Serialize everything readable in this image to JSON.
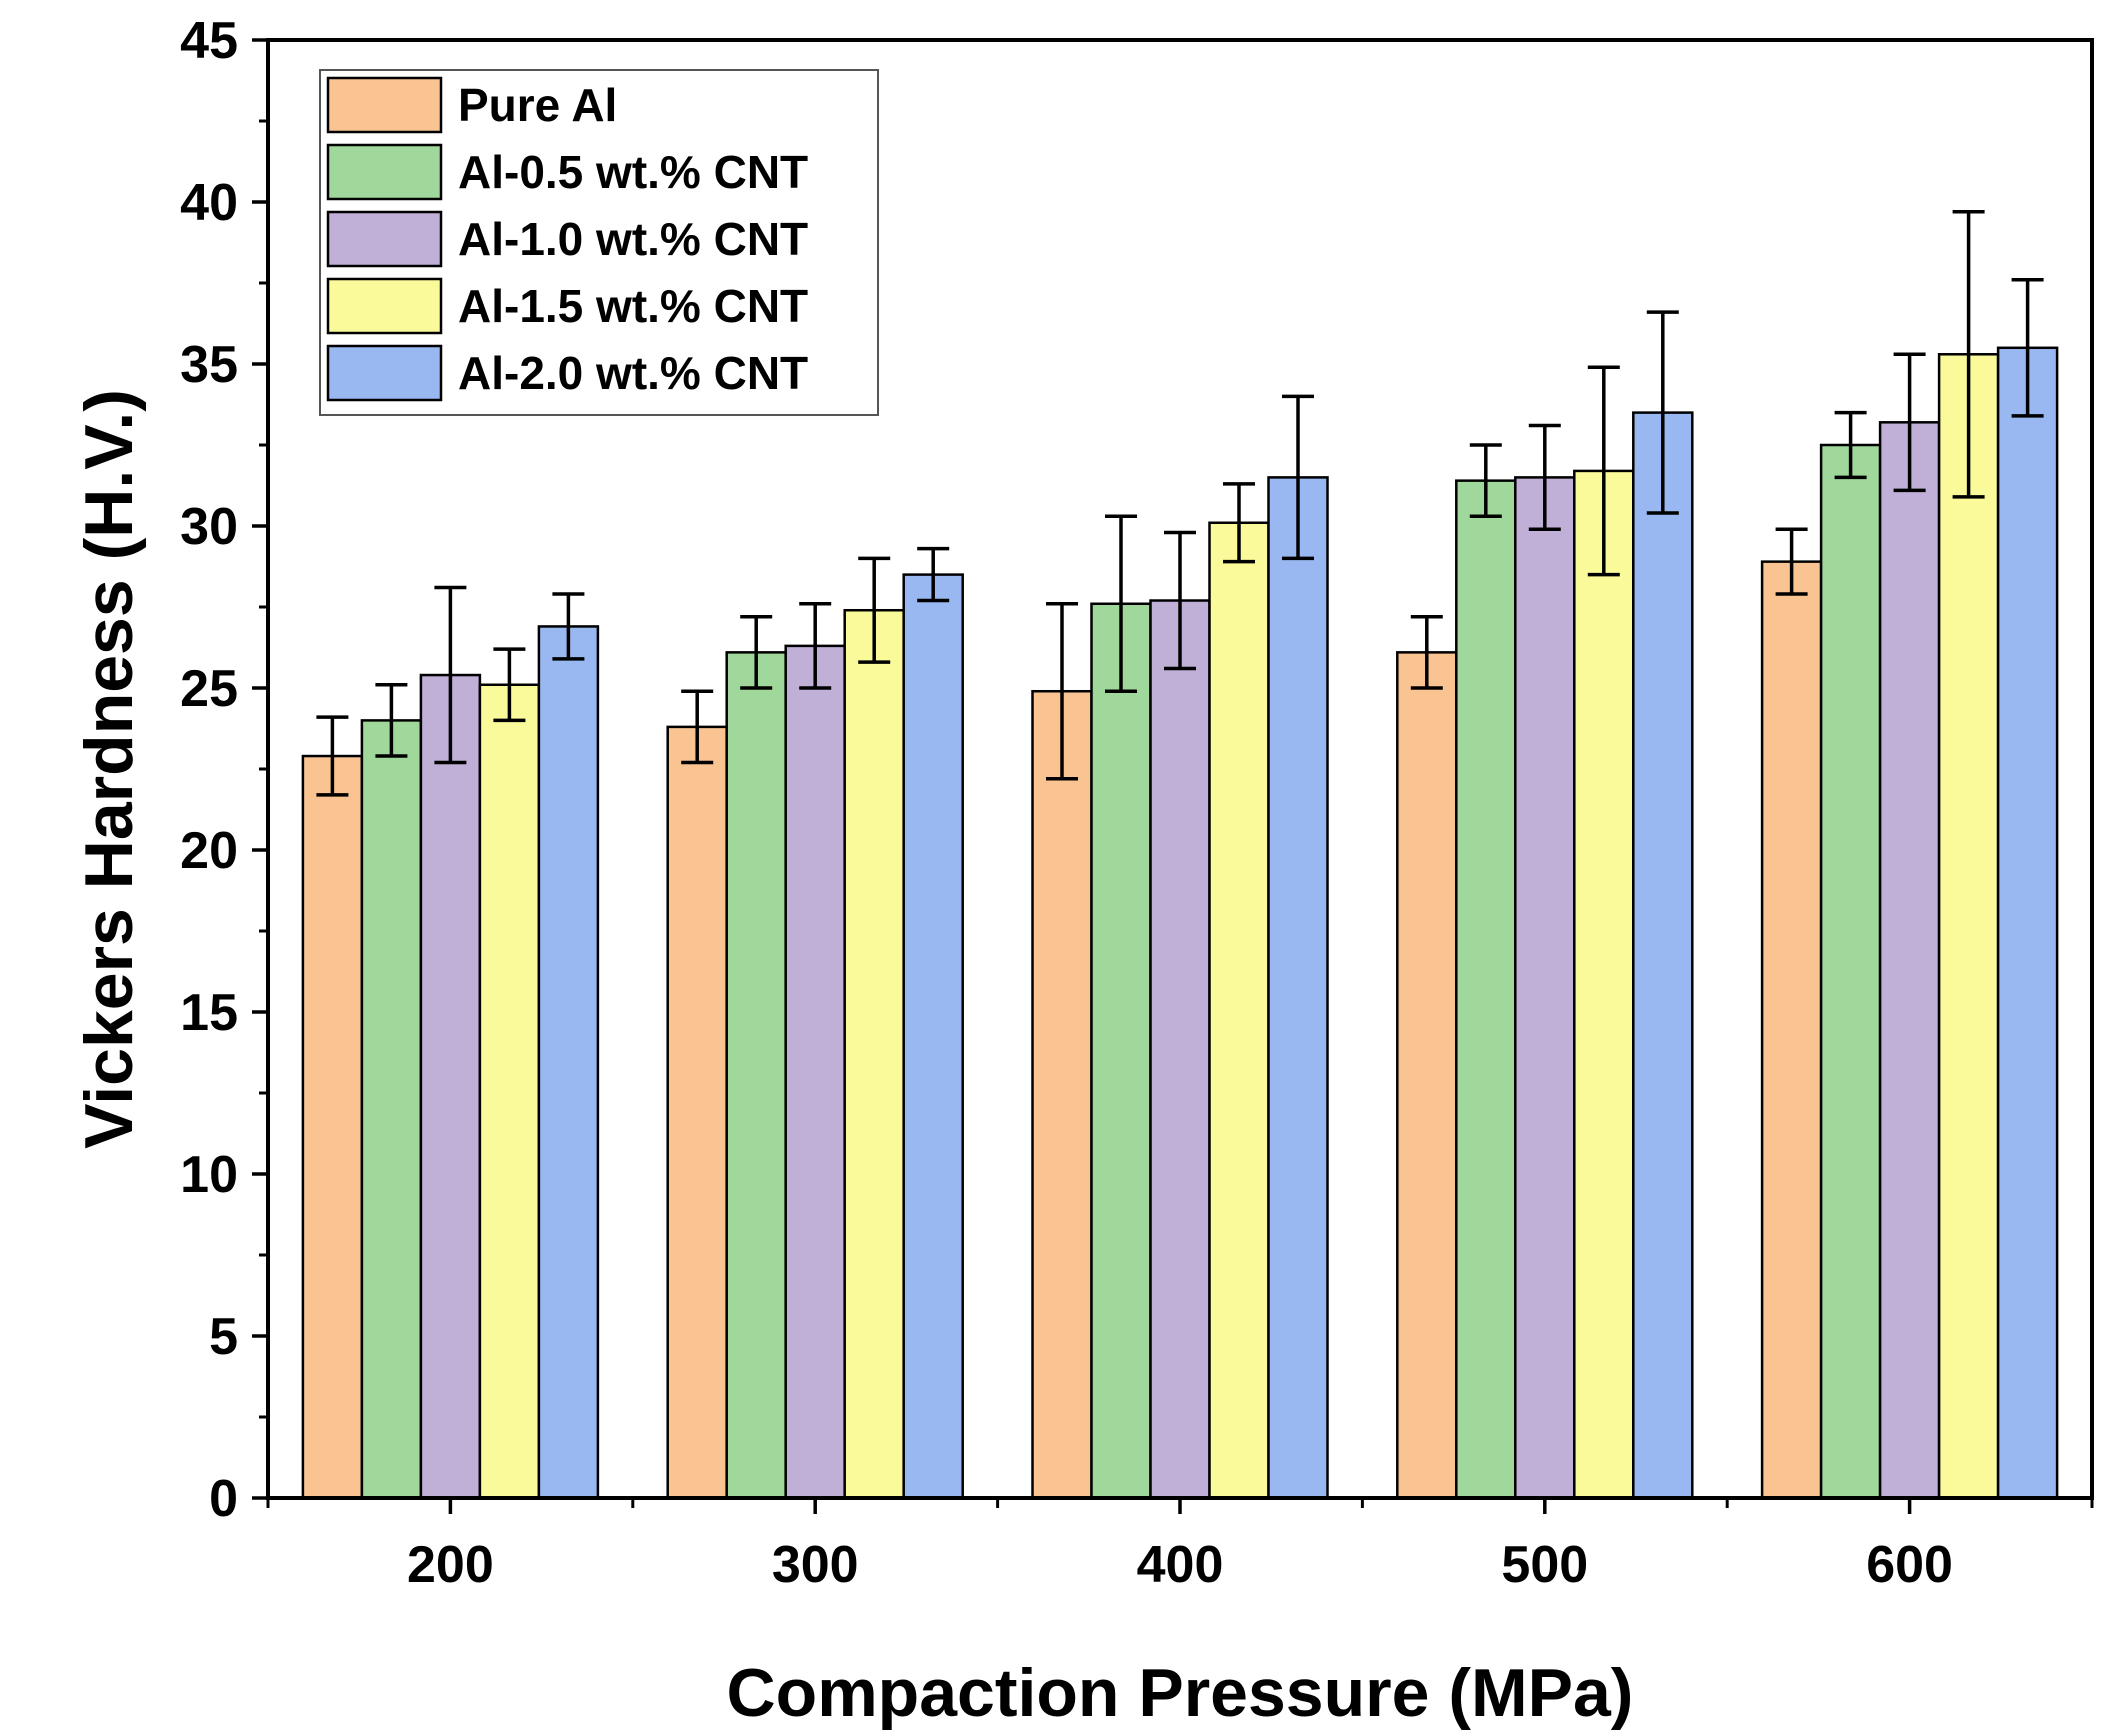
{
  "chart_data": {
    "type": "bar",
    "xlabel": "Compaction Pressure (MPa)",
    "ylabel": "Vickers Hardness (H.V.)",
    "ylim": [
      0,
      45
    ],
    "yticks": [
      "0",
      "5",
      "10",
      "15",
      "20",
      "25",
      "30",
      "35",
      "40",
      "45"
    ],
    "categories": [
      "200",
      "300",
      "400",
      "500",
      "600"
    ],
    "grid": false,
    "legend_position": "top-left",
    "series": [
      {
        "name": "Pure Al",
        "color": "#F9C492",
        "values": [
          22.9,
          23.8,
          24.9,
          26.1,
          28.9
        ],
        "errors": [
          1.2,
          1.1,
          2.7,
          1.1,
          1.0
        ]
      },
      {
        "name": "Al-0.5 wt.% CNT",
        "color": "#9FD89A",
        "values": [
          24.0,
          26.1,
          27.6,
          31.4,
          32.5
        ],
        "errors": [
          1.1,
          1.1,
          2.7,
          1.1,
          1.0
        ]
      },
      {
        "name": "Al-1.0 wt.% CNT",
        "color": "#C0AFD6",
        "values": [
          25.4,
          26.3,
          27.7,
          31.5,
          33.2
        ],
        "errors": [
          2.7,
          1.3,
          2.1,
          1.6,
          2.1
        ]
      },
      {
        "name": "Al-1.5 wt.% CNT",
        "color": "#FAFA9A",
        "values": [
          25.1,
          27.4,
          30.1,
          31.7,
          35.3
        ],
        "errors": [
          1.1,
          1.6,
          1.2,
          3.2,
          4.4
        ]
      },
      {
        "name": "Al-2.0 wt.% CNT",
        "color": "#99B8F1",
        "values": [
          26.9,
          28.5,
          31.5,
          33.5,
          35.5
        ],
        "errors": [
          1.0,
          0.8,
          2.5,
          3.1,
          2.1
        ]
      }
    ]
  }
}
